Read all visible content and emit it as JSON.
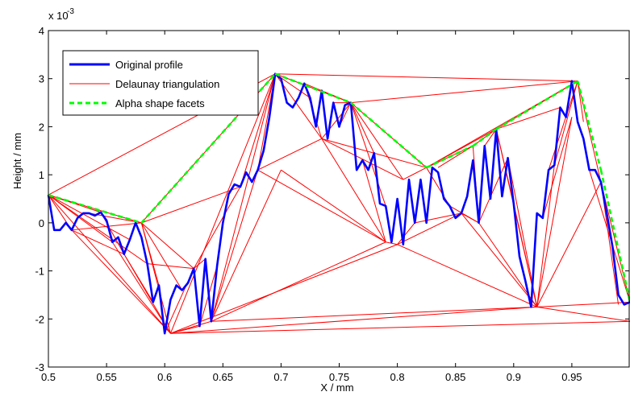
{
  "chart_data": {
    "type": "line",
    "xlabel": "X / mm",
    "ylabel": "Height / mm",
    "xlim": [
      0.5,
      1.0
    ],
    "ylim": [
      -3,
      4
    ],
    "y_multiplier": "x 10",
    "y_multiplier_exponent": "-3",
    "x_ticks": [
      0.5,
      0.55,
      0.6,
      0.65,
      0.7,
      0.75,
      0.8,
      0.85,
      0.9,
      0.95
    ],
    "x_tick_labels": [
      "0.5",
      "0.55",
      "0.6",
      "0.65",
      "0.7",
      "0.75",
      "0.8",
      "0.85",
      "0.9",
      "0.95"
    ],
    "y_ticks": [
      -3,
      -2,
      -1,
      0,
      1,
      2,
      3,
      4
    ],
    "y_tick_labels": [
      "-3",
      "-2",
      "-1",
      "0",
      "1",
      "2",
      "3",
      "4"
    ],
    "grid": false,
    "legend_position": "top-left",
    "colors": {
      "profile": "#0000ff",
      "delaunay": "#ff0000",
      "alpha": "#00ff00"
    },
    "legend": [
      "Original profile",
      "Delaunay triangulation",
      "Alpha shape facets"
    ],
    "profile": {
      "name": "Original profile",
      "x": [
        0.5,
        0.505,
        0.51,
        0.515,
        0.52,
        0.525,
        0.53,
        0.535,
        0.54,
        0.545,
        0.55,
        0.555,
        0.56,
        0.565,
        0.57,
        0.575,
        0.58,
        0.585,
        0.59,
        0.595,
        0.6,
        0.605,
        0.61,
        0.615,
        0.62,
        0.625,
        0.63,
        0.635,
        0.64,
        0.645,
        0.65,
        0.655,
        0.66,
        0.665,
        0.67,
        0.675,
        0.68,
        0.685,
        0.69,
        0.695,
        0.7,
        0.705,
        0.71,
        0.715,
        0.72,
        0.725,
        0.73,
        0.735,
        0.74,
        0.745,
        0.75,
        0.755,
        0.76,
        0.765,
        0.77,
        0.775,
        0.78,
        0.785,
        0.79,
        0.795,
        0.8,
        0.805,
        0.81,
        0.815,
        0.82,
        0.825,
        0.83,
        0.835,
        0.84,
        0.845,
        0.85,
        0.855,
        0.86,
        0.865,
        0.87,
        0.875,
        0.88,
        0.885,
        0.89,
        0.895,
        0.9,
        0.905,
        0.91,
        0.915,
        0.92,
        0.925,
        0.93,
        0.935,
        0.94,
        0.945,
        0.95,
        0.955,
        0.96,
        0.965,
        0.97,
        0.975,
        0.98,
        0.985,
        0.99,
        0.995,
        1.0
      ],
      "y": [
        0.58,
        -0.15,
        -0.15,
        0.0,
        -0.15,
        0.1,
        0.2,
        0.2,
        0.15,
        0.22,
        0.05,
        -0.4,
        -0.3,
        -0.65,
        -0.35,
        0.0,
        -0.3,
        -0.85,
        -1.65,
        -1.3,
        -2.3,
        -1.6,
        -1.3,
        -1.4,
        -1.25,
        -0.95,
        -2.15,
        -0.75,
        -2.05,
        -0.9,
        0.0,
        0.6,
        0.8,
        0.75,
        1.05,
        0.85,
        1.1,
        1.5,
        2.2,
        3.1,
        3.0,
        2.5,
        2.4,
        2.6,
        2.9,
        2.6,
        2.0,
        2.75,
        1.75,
        2.5,
        2.0,
        2.45,
        2.5,
        1.1,
        1.3,
        1.1,
        1.45,
        0.4,
        0.35,
        -0.4,
        0.5,
        -0.45,
        0.9,
        0.0,
        0.9,
        0.0,
        1.15,
        1.05,
        0.5,
        0.35,
        0.1,
        0.2,
        0.55,
        1.3,
        0.0,
        1.6,
        0.5,
        1.95,
        0.55,
        1.35,
        0.4,
        -0.7,
        -1.2,
        -1.75,
        0.2,
        0.1,
        1.1,
        1.2,
        2.4,
        2.2,
        2.95,
        2.1,
        1.75,
        1.1,
        1.1,
        0.85,
        0.2,
        -0.5,
        -1.5,
        -1.7,
        -1.65
      ]
    },
    "delaunay_edges": [
      [
        [
          0.5,
          0.58
        ],
        [
          0.58,
          0.0
        ]
      ],
      [
        [
          0.5,
          0.58
        ],
        [
          0.695,
          3.1
        ]
      ],
      [
        [
          0.5,
          0.58
        ],
        [
          0.605,
          -2.3
        ]
      ],
      [
        [
          0.5,
          0.58
        ],
        [
          0.585,
          -0.85
        ]
      ],
      [
        [
          0.5,
          0.58
        ],
        [
          0.57,
          -0.35
        ]
      ],
      [
        [
          0.5,
          0.58
        ],
        [
          0.52,
          -0.15
        ]
      ],
      [
        [
          0.5,
          0.58
        ],
        [
          0.545,
          0.22
        ]
      ],
      [
        [
          0.5,
          0.58
        ],
        [
          0.555,
          -0.4
        ]
      ],
      [
        [
          0.58,
          0.0
        ],
        [
          0.695,
          3.1
        ]
      ],
      [
        [
          0.58,
          0.0
        ],
        [
          0.625,
          -0.95
        ]
      ],
      [
        [
          0.58,
          0.0
        ],
        [
          0.665,
          0.75
        ]
      ],
      [
        [
          0.58,
          0.0
        ],
        [
          0.605,
          -2.3
        ]
      ],
      [
        [
          0.58,
          0.0
        ],
        [
          0.595,
          -1.3
        ]
      ],
      [
        [
          0.58,
          0.0
        ],
        [
          0.615,
          -1.4
        ]
      ],
      [
        [
          0.52,
          -0.15
        ],
        [
          0.58,
          0.0
        ]
      ],
      [
        [
          0.52,
          -0.15
        ],
        [
          0.605,
          -2.3
        ]
      ],
      [
        [
          0.52,
          -0.15
        ],
        [
          0.565,
          -0.65
        ]
      ],
      [
        [
          0.535,
          0.2
        ],
        [
          0.58,
          0.0
        ]
      ],
      [
        [
          0.545,
          0.22
        ],
        [
          0.565,
          -0.65
        ]
      ],
      [
        [
          0.555,
          -0.4
        ],
        [
          0.605,
          -2.3
        ]
      ],
      [
        [
          0.565,
          -0.65
        ],
        [
          0.605,
          -2.3
        ]
      ],
      [
        [
          0.565,
          -0.65
        ],
        [
          0.59,
          -1.65
        ]
      ],
      [
        [
          0.585,
          -0.85
        ],
        [
          0.625,
          -0.95
        ]
      ],
      [
        [
          0.6,
          -2.3
        ],
        [
          0.625,
          -0.95
        ]
      ],
      [
        [
          0.605,
          -2.3
        ],
        [
          0.63,
          -2.15
        ]
      ],
      [
        [
          0.605,
          -2.3
        ],
        [
          0.64,
          -2.05
        ]
      ],
      [
        [
          0.605,
          -2.3
        ],
        [
          0.92,
          -1.75
        ]
      ],
      [
        [
          0.605,
          -2.3
        ],
        [
          1.0,
          -2.05
        ]
      ],
      [
        [
          0.605,
          -2.3
        ],
        [
          0.8,
          -0.45
        ]
      ],
      [
        [
          0.605,
          -2.3
        ],
        [
          0.695,
          3.1
        ]
      ],
      [
        [
          0.64,
          -2.05
        ],
        [
          0.92,
          -1.75
        ]
      ],
      [
        [
          0.64,
          -2.05
        ],
        [
          0.79,
          -0.4
        ]
      ],
      [
        [
          0.64,
          -2.05
        ],
        [
          0.695,
          3.1
        ]
      ],
      [
        [
          0.64,
          -2.05
        ],
        [
          0.7,
          1.1
        ]
      ],
      [
        [
          0.64,
          -2.05
        ],
        [
          0.68,
          1.1
        ]
      ],
      [
        [
          0.63,
          -2.15
        ],
        [
          0.645,
          -0.9
        ]
      ],
      [
        [
          0.625,
          -0.95
        ],
        [
          0.665,
          0.75
        ]
      ],
      [
        [
          0.625,
          -0.95
        ],
        [
          0.635,
          -0.75
        ]
      ],
      [
        [
          0.665,
          0.75
        ],
        [
          0.695,
          3.1
        ]
      ],
      [
        [
          0.68,
          1.1
        ],
        [
          0.735,
          1.75
        ]
      ],
      [
        [
          0.68,
          1.1
        ],
        [
          0.695,
          3.1
        ]
      ],
      [
        [
          0.68,
          1.1
        ],
        [
          0.79,
          -0.4
        ]
      ],
      [
        [
          0.7,
          1.1
        ],
        [
          0.79,
          -0.4
        ]
      ],
      [
        [
          0.695,
          3.1
        ],
        [
          0.955,
          2.95
        ]
      ],
      [
        [
          0.695,
          3.1
        ],
        [
          0.76,
          2.5
        ]
      ],
      [
        [
          0.695,
          3.1
        ],
        [
          0.735,
          1.75
        ]
      ],
      [
        [
          0.695,
          3.1
        ],
        [
          0.725,
          2.6
        ]
      ],
      [
        [
          0.72,
          2.9
        ],
        [
          0.735,
          1.75
        ]
      ],
      [
        [
          0.72,
          2.9
        ],
        [
          0.76,
          2.5
        ]
      ],
      [
        [
          0.735,
          1.75
        ],
        [
          0.76,
          2.5
        ]
      ],
      [
        [
          0.735,
          1.75
        ],
        [
          0.79,
          -0.4
        ]
      ],
      [
        [
          0.735,
          1.75
        ],
        [
          0.825,
          1.15
        ]
      ],
      [
        [
          0.735,
          1.75
        ],
        [
          0.805,
          0.9
        ]
      ],
      [
        [
          0.745,
          2.5
        ],
        [
          0.76,
          2.5
        ]
      ],
      [
        [
          0.75,
          2.0
        ],
        [
          0.76,
          2.5
        ]
      ],
      [
        [
          0.76,
          2.5
        ],
        [
          0.955,
          2.95
        ]
      ],
      [
        [
          0.76,
          2.5
        ],
        [
          0.825,
          1.15
        ]
      ],
      [
        [
          0.76,
          2.5
        ],
        [
          0.79,
          0.35
        ]
      ],
      [
        [
          0.76,
          2.5
        ],
        [
          0.805,
          0.9
        ]
      ],
      [
        [
          0.76,
          2.5
        ],
        [
          0.78,
          1.45
        ]
      ],
      [
        [
          0.77,
          1.3
        ],
        [
          0.79,
          -0.4
        ]
      ],
      [
        [
          0.79,
          -0.4
        ],
        [
          0.8,
          -0.45
        ]
      ],
      [
        [
          0.8,
          -0.45
        ],
        [
          0.92,
          -1.75
        ]
      ],
      [
        [
          0.8,
          -0.45
        ],
        [
          0.855,
          0.2
        ]
      ],
      [
        [
          0.8,
          -0.45
        ],
        [
          0.815,
          0.0
        ]
      ],
      [
        [
          0.805,
          0.9
        ],
        [
          0.825,
          1.15
        ]
      ],
      [
        [
          0.815,
          0.0
        ],
        [
          0.855,
          0.2
        ]
      ],
      [
        [
          0.825,
          1.15
        ],
        [
          0.955,
          2.95
        ]
      ],
      [
        [
          0.825,
          1.15
        ],
        [
          0.885,
          1.95
        ]
      ],
      [
        [
          0.825,
          1.15
        ],
        [
          0.865,
          1.6
        ]
      ],
      [
        [
          0.825,
          1.15
        ],
        [
          0.845,
          0.35
        ]
      ],
      [
        [
          0.835,
          1.15
        ],
        [
          0.865,
          1.6
        ]
      ],
      [
        [
          0.845,
          0.35
        ],
        [
          0.87,
          0.0
        ]
      ],
      [
        [
          0.855,
          0.2
        ],
        [
          0.87,
          0.0
        ]
      ],
      [
        [
          0.855,
          0.2
        ],
        [
          0.92,
          -1.75
        ]
      ],
      [
        [
          0.865,
          1.6
        ],
        [
          0.885,
          1.95
        ]
      ],
      [
        [
          0.865,
          1.6
        ],
        [
          0.87,
          0.0
        ]
      ],
      [
        [
          0.87,
          0.0
        ],
        [
          0.92,
          -1.75
        ]
      ],
      [
        [
          0.87,
          0.0
        ],
        [
          0.895,
          1.35
        ]
      ],
      [
        [
          0.875,
          1.6
        ],
        [
          0.885,
          1.95
        ]
      ],
      [
        [
          0.885,
          1.95
        ],
        [
          0.955,
          2.95
        ]
      ],
      [
        [
          0.885,
          1.95
        ],
        [
          0.92,
          -1.75
        ]
      ],
      [
        [
          0.885,
          1.95
        ],
        [
          0.94,
          2.4
        ]
      ],
      [
        [
          0.885,
          1.95
        ],
        [
          0.9,
          0.4
        ]
      ],
      [
        [
          0.895,
          1.35
        ],
        [
          0.92,
          -1.75
        ]
      ],
      [
        [
          0.9,
          0.4
        ],
        [
          0.92,
          -1.75
        ]
      ],
      [
        [
          0.92,
          -1.75
        ],
        [
          1.0,
          -2.05
        ]
      ],
      [
        [
          0.92,
          -1.75
        ],
        [
          1.0,
          -1.65
        ]
      ],
      [
        [
          0.92,
          -1.75
        ],
        [
          0.975,
          0.85
        ]
      ],
      [
        [
          0.92,
          -1.75
        ],
        [
          0.935,
          1.2
        ]
      ],
      [
        [
          0.92,
          -1.75
        ],
        [
          0.95,
          2.2
        ]
      ],
      [
        [
          0.925,
          0.1
        ],
        [
          0.95,
          2.2
        ]
      ],
      [
        [
          0.93,
          1.1
        ],
        [
          0.955,
          2.95
        ]
      ],
      [
        [
          0.935,
          1.2
        ],
        [
          0.955,
          2.95
        ]
      ],
      [
        [
          0.955,
          2.95
        ],
        [
          0.975,
          0.85
        ]
      ],
      [
        [
          0.955,
          2.95
        ],
        [
          0.96,
          2.1
        ]
      ],
      [
        [
          0.965,
          1.1
        ],
        [
          1.0,
          -1.65
        ]
      ],
      [
        [
          0.975,
          0.85
        ],
        [
          1.0,
          -1.65
        ]
      ],
      [
        [
          0.975,
          0.85
        ],
        [
          0.99,
          -1.7
        ]
      ]
    ],
    "alpha_facets": {
      "x": [
        0.5,
        0.58,
        0.695,
        0.76,
        0.825,
        0.865,
        0.885,
        0.955,
        0.975,
        1.0
      ],
      "y": [
        0.58,
        0.0,
        3.1,
        2.5,
        1.15,
        1.6,
        1.95,
        2.95,
        1.1,
        -1.65
      ]
    }
  }
}
